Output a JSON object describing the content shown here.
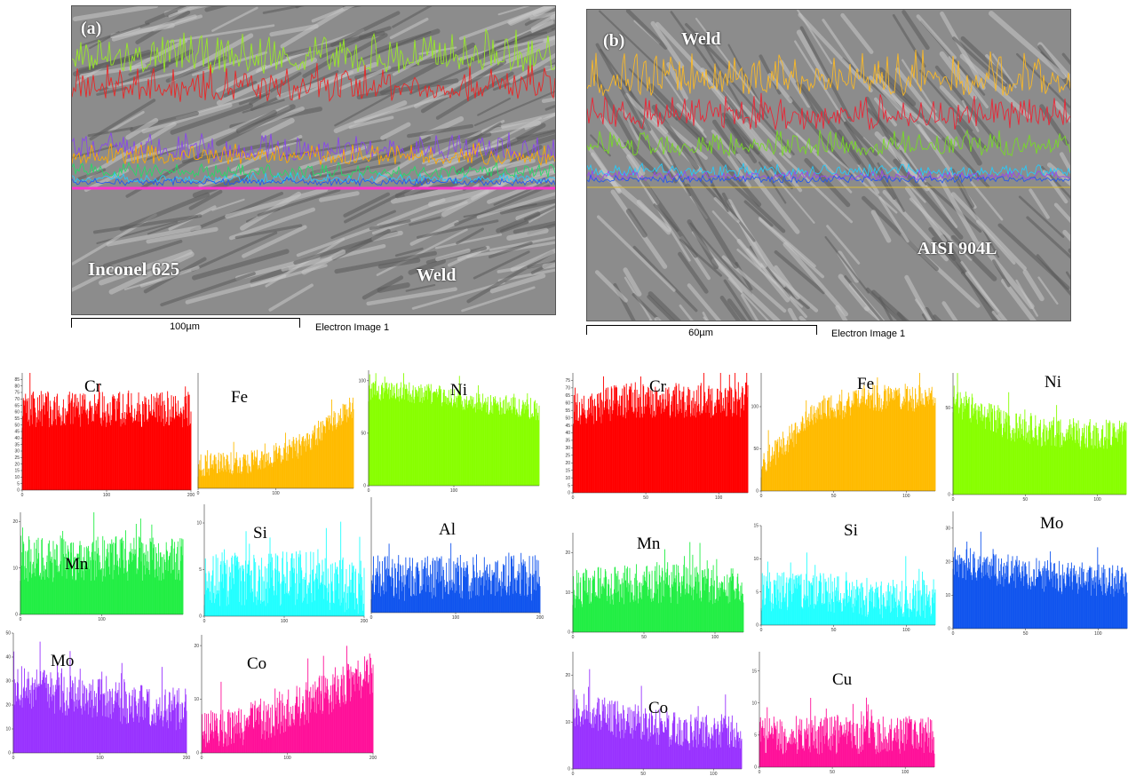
{
  "figure_a": {
    "label": "(a)",
    "region_left": "Inconel 625",
    "region_right": "Weld",
    "scale": "100µm",
    "caption": "Electron Image 1"
  },
  "figure_b": {
    "label": "(b)",
    "region_top": "Weld",
    "region_right": "AISI 904L",
    "scale": "60µm",
    "caption": "Electron Image 1"
  },
  "chart_data": [
    {
      "type": "bar",
      "panel": "a",
      "element": "Cr",
      "color": "#ff0000",
      "ylim": [
        0,
        90
      ],
      "yticks": [
        0,
        5,
        10,
        15,
        20,
        25,
        30,
        35,
        40,
        45,
        50,
        55,
        60,
        65,
        70,
        75,
        80,
        85
      ],
      "xlim": [
        0,
        200
      ],
      "xticks": [
        0,
        100,
        200
      ],
      "profile": [
        62,
        62,
        62,
        62
      ],
      "noise": 14
    },
    {
      "type": "bar",
      "panel": "a",
      "element": "Fe",
      "color": "#ffbb00",
      "ylim": [
        0,
        140
      ],
      "yticks": [],
      "xlim": [
        0,
        200
      ],
      "xticks": [
        0,
        100
      ],
      "profile": [
        28,
        32,
        50,
        100
      ],
      "noise": 14
    },
    {
      "type": "bar",
      "panel": "a",
      "element": "Ni",
      "color": "#88ff00",
      "ylim": [
        0,
        110
      ],
      "yticks": [
        0,
        50,
        100
      ],
      "xlim": [
        0,
        200
      ],
      "xticks": [
        0,
        100
      ],
      "profile": [
        90,
        88,
        78,
        72
      ],
      "noise": 10
    },
    {
      "type": "bar",
      "panel": "a",
      "element": "Mn",
      "color": "#22ee44",
      "ylim": [
        0,
        22
      ],
      "yticks": [
        0,
        10,
        20
      ],
      "xlim": [
        0,
        200
      ],
      "xticks": [
        0,
        100
      ],
      "profile": [
        12,
        12,
        12,
        12
      ],
      "noise": 5
    },
    {
      "type": "bar",
      "panel": "a",
      "element": "Si",
      "color": "#22ffff",
      "ylim": [
        0,
        12
      ],
      "yticks": [
        0,
        5,
        10
      ],
      "xlim": [
        0,
        200
      ],
      "xticks": [
        0,
        100,
        200
      ],
      "profile": [
        4,
        4,
        4,
        3
      ],
      "noise": 3
    },
    {
      "type": "bar",
      "panel": "a",
      "element": "Al",
      "color": "#1155ee",
      "ylim": [
        0,
        20
      ],
      "yticks": [],
      "xlim": [
        0,
        200
      ],
      "xticks": [
        0,
        100,
        200
      ],
      "profile": [
        6,
        6,
        6,
        6
      ],
      "noise": 4
    },
    {
      "type": "bar",
      "panel": "a",
      "element": "Mo",
      "color": "#9933ff",
      "ylim": [
        0,
        50
      ],
      "yticks": [
        0,
        10,
        20,
        30,
        40,
        50
      ],
      "xlim": [
        0,
        200
      ],
      "xticks": [
        0,
        100,
        200
      ],
      "profile": [
        28,
        24,
        20,
        18
      ],
      "noise": 9
    },
    {
      "type": "bar",
      "panel": "a",
      "element": "Co",
      "color": "#ff1199",
      "ylim": [
        0,
        22
      ],
      "yticks": [
        0,
        10,
        20
      ],
      "xlim": [
        0,
        200
      ],
      "xticks": [
        0,
        100,
        200
      ],
      "profile": [
        4,
        6,
        10,
        15
      ],
      "noise": 4
    },
    {
      "type": "bar",
      "panel": "b",
      "element": "Cr",
      "color": "#ff0000",
      "ylim": [
        0,
        80
      ],
      "yticks": [
        0,
        5,
        10,
        15,
        20,
        25,
        30,
        35,
        40,
        45,
        50,
        55,
        60,
        65,
        70,
        75
      ],
      "xlim": [
        0,
        120
      ],
      "xticks": [
        0,
        50,
        100
      ],
      "profile": [
        55,
        62,
        62,
        62
      ],
      "noise": 12
    },
    {
      "type": "bar",
      "panel": "b",
      "element": "Fe",
      "color": "#ffbb00",
      "ylim": [
        0,
        140
      ],
      "yticks": [
        0,
        50,
        100
      ],
      "xlim": [
        0,
        120
      ],
      "xticks": [
        0,
        50,
        100
      ],
      "profile": [
        30,
        95,
        110,
        110
      ],
      "noise": 16
    },
    {
      "type": "bar",
      "panel": "b",
      "element": "Ni",
      "color": "#88ff00",
      "ylim": [
        0,
        70
      ],
      "yticks": [
        0,
        50
      ],
      "xlim": [
        0,
        120
      ],
      "xticks": [
        0,
        50,
        100
      ],
      "profile": [
        55,
        38,
        35,
        35
      ],
      "noise": 9
    },
    {
      "type": "bar",
      "panel": "b",
      "element": "Mn",
      "color": "#22ee44",
      "ylim": [
        0,
        25
      ],
      "yticks": [
        0,
        10,
        20
      ],
      "xlim": [
        0,
        120
      ],
      "xticks": [
        0,
        50,
        100
      ],
      "profile": [
        11,
        12,
        12,
        12
      ],
      "noise": 5
    },
    {
      "type": "bar",
      "panel": "b",
      "element": "Si",
      "color": "#22ffff",
      "ylim": [
        0,
        15
      ],
      "yticks": [
        0,
        5,
        10,
        15
      ],
      "xlim": [
        0,
        120
      ],
      "xticks": [
        0,
        50,
        100
      ],
      "profile": [
        5,
        5,
        4,
        4
      ],
      "noise": 3
    },
    {
      "type": "bar",
      "panel": "b",
      "element": "Mo",
      "color": "#1155ee",
      "ylim": [
        0,
        35
      ],
      "yticks": [
        0,
        10,
        20,
        30
      ],
      "xlim": [
        0,
        120
      ],
      "xticks": [
        0,
        50,
        100
      ],
      "profile": [
        20,
        17,
        15,
        14
      ],
      "noise": 5
    },
    {
      "type": "bar",
      "panel": "b",
      "element": "Co",
      "color": "#9933ff",
      "ylim": [
        0,
        25
      ],
      "yticks": [
        0,
        10,
        20
      ],
      "xlim": [
        0,
        120
      ],
      "xticks": [
        0,
        50,
        100
      ],
      "profile": [
        13,
        10,
        8,
        8
      ],
      "noise": 4
    },
    {
      "type": "bar",
      "panel": "b",
      "element": "Cu",
      "color": "#ff1199",
      "ylim": [
        0,
        18
      ],
      "yticks": [
        0,
        5,
        10,
        15
      ],
      "xlim": [
        0,
        120
      ],
      "xticks": [
        0,
        50,
        100
      ],
      "profile": [
        5,
        5,
        5,
        5
      ],
      "noise": 3
    }
  ]
}
